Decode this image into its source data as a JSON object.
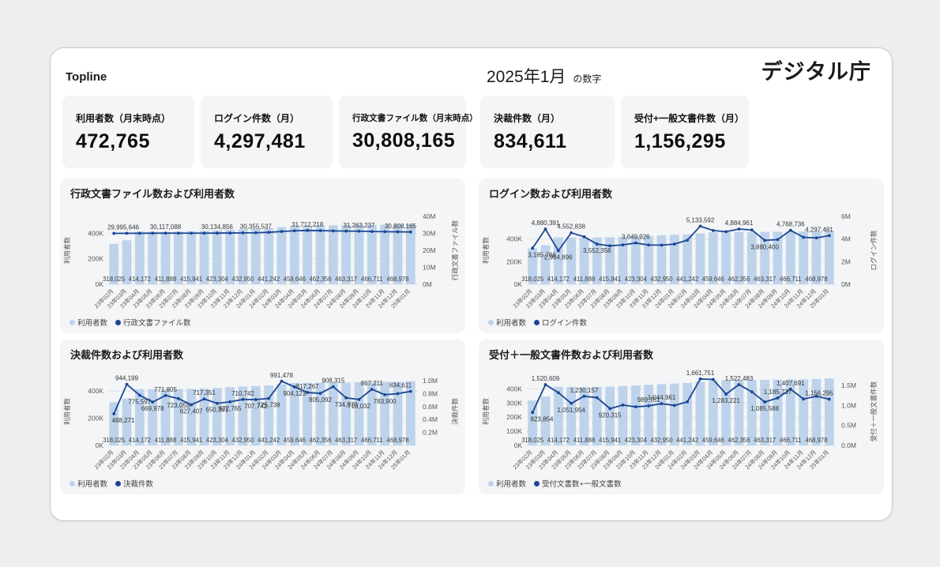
{
  "header": {
    "topline": "Topline",
    "period": "2025年1月",
    "period_suffix": "の数字",
    "brand": "デジタル庁"
  },
  "kpis": [
    {
      "label": "利用者数（月末時点）",
      "value": "472,765"
    },
    {
      "label": "ログイン件数（月）",
      "value": "4,297,481"
    },
    {
      "label": "行政文書ファイル数（月末時点）",
      "value": "30,808,165"
    },
    {
      "label": "決裁件数（月）",
      "value": "834,611"
    },
    {
      "label": "受付+一般文書件数（月）",
      "value": "1,156,295"
    }
  ],
  "colors": {
    "bar": "#BDD3EB",
    "line": "#1C4693"
  },
  "categories": [
    "23年02月",
    "23年03月",
    "23年04月",
    "23年05月",
    "23年06月",
    "23年07月",
    "23年08月",
    "23年09月",
    "23年10月",
    "23年11月",
    "23年12月",
    "24年01月",
    "24年02月",
    "24年03月",
    "24年04月",
    "24年05月",
    "24年06月",
    "24年07月",
    "24年08月",
    "24年09月",
    "24年10月",
    "24年11月",
    "24年12月",
    "25年01月"
  ],
  "users_bars": {
    "name": "利用者数",
    "values": [
      318025,
      345000,
      414172,
      413000,
      411888,
      414000,
      415941,
      419000,
      423304,
      428000,
      432950,
      437000,
      441242,
      450000,
      459646,
      461000,
      462356,
      462800,
      463317,
      465000,
      466711,
      467800,
      468978,
      472765
    ],
    "labels": [
      {
        "i": 0,
        "text": "318,025"
      },
      {
        "i": 2,
        "text": "414,172"
      },
      {
        "i": 4,
        "text": "411,888"
      },
      {
        "i": 6,
        "text": "415,941"
      },
      {
        "i": 8,
        "text": "423,304"
      },
      {
        "i": 10,
        "text": "432,950"
      },
      {
        "i": 12,
        "text": "441,242"
      },
      {
        "i": 14,
        "text": "459,646"
      },
      {
        "i": 16,
        "text": "462,356"
      },
      {
        "i": 18,
        "text": "463,317"
      },
      {
        "i": 20,
        "text": "466,711"
      },
      {
        "i": 22,
        "text": "468,978"
      }
    ]
  },
  "chart_data": [
    {
      "type": "combo_bar_line",
      "title": "行政文書ファイル数および利用者数",
      "line": {
        "name": "行政文書ファイル数",
        "values": [
          29995646,
          30030000,
          30070000,
          30095000,
          30117088,
          30125000,
          30130000,
          30132000,
          30134856,
          30200000,
          30280000,
          30355537,
          30600000,
          31100000,
          31500000,
          31712218,
          31600000,
          31450000,
          31350000,
          31263237,
          31100000,
          30980000,
          30890000,
          30808165
        ],
        "labels": [
          {
            "i": 0,
            "text": "29,995,646",
            "side": "above"
          },
          {
            "i": 4,
            "text": "30,117,088",
            "side": "above"
          },
          {
            "i": 8,
            "text": "30,134,856",
            "side": "above"
          },
          {
            "i": 11,
            "text": "30,355,537",
            "side": "above"
          },
          {
            "i": 15,
            "text": "31,712,218",
            "side": "above"
          },
          {
            "i": 19,
            "text": "31,263,237",
            "side": "above"
          },
          {
            "i": 23,
            "text": "30,808,165",
            "side": "above"
          }
        ]
      },
      "left_axis": {
        "title": "利用者数",
        "max": 533000,
        "ticks": [
          {
            "v": 0,
            "label": "0K"
          },
          {
            "v": 200000,
            "label": "200K"
          },
          {
            "v": 400000,
            "label": "400K"
          }
        ]
      },
      "right_axis": {
        "title": "行政文書ファイル数",
        "max": 40000000,
        "ticks": [
          {
            "v": 0,
            "label": "0M"
          },
          {
            "v": 10000000,
            "label": "10M"
          },
          {
            "v": 20000000,
            "label": "20M"
          },
          {
            "v": 30000000,
            "label": "30M"
          },
          {
            "v": 40000000,
            "label": "40M"
          }
        ]
      },
      "legend": [
        {
          "label": "利用者数",
          "marker": "bar"
        },
        {
          "label": "行政文書ファイル数",
          "marker": "line"
        }
      ]
    },
    {
      "type": "combo_bar_line",
      "title": "ログイン数および利用者数",
      "line": {
        "name": "ログイン件数",
        "values": [
          3185766,
          4880391,
          2964896,
          4552838,
          4200000,
          3552358,
          3400000,
          3480000,
          3649926,
          3470000,
          3460000,
          3550000,
          3900000,
          5133592,
          4750000,
          4650000,
          4884961,
          4800000,
          3880400,
          3950000,
          4768736,
          4150000,
          4100000,
          4297481
        ],
        "labels": [
          {
            "i": 0,
            "text": "3,185,766",
            "side": "below"
          },
          {
            "i": 1,
            "text": "4,880,391",
            "side": "above"
          },
          {
            "i": 2,
            "text": "2,964,896",
            "side": "below"
          },
          {
            "i": 3,
            "text": "4,552,838",
            "side": "above"
          },
          {
            "i": 5,
            "text": "3,552,358",
            "side": "below"
          },
          {
            "i": 8,
            "text": "3,649,926",
            "side": "above"
          },
          {
            "i": 13,
            "text": "5,133,592",
            "side": "above"
          },
          {
            "i": 16,
            "text": "4,884,961",
            "side": "above"
          },
          {
            "i": 18,
            "text": "3,880,400",
            "side": "below"
          },
          {
            "i": 20,
            "text": "4,768,736",
            "side": "above"
          },
          {
            "i": 23,
            "text": "4,297,481",
            "side": "above"
          }
        ]
      },
      "left_axis": {
        "title": "利用者数",
        "max": 600000,
        "ticks": [
          {
            "v": 0,
            "label": "0K"
          },
          {
            "v": 200000,
            "label": "200K"
          },
          {
            "v": 400000,
            "label": "400K"
          }
        ]
      },
      "right_axis": {
        "title": "ログイン件数",
        "max": 6000000,
        "ticks": [
          {
            "v": 0,
            "label": "0M"
          },
          {
            "v": 2000000,
            "label": "2M"
          },
          {
            "v": 4000000,
            "label": "4M"
          },
          {
            "v": 6000000,
            "label": "6M"
          }
        ]
      },
      "legend": [
        {
          "label": "利用者数",
          "marker": "bar"
        },
        {
          "label": "ログイン件数",
          "marker": "line"
        }
      ]
    },
    {
      "type": "combo_bar_line",
      "title": "決裁件数および利用者数",
      "line": {
        "name": "決裁件数",
        "values": [
          488271,
          944199,
          775597,
          669978,
          771805,
          723055,
          627407,
          717351,
          650391,
          672765,
          710742,
          707742,
          725738,
          991478,
          904123,
          817267,
          805092,
          908315,
          734870,
          710032,
          867211,
          783900,
          800000,
          834611
        ],
        "labels": [
          {
            "i": 0,
            "text": "488,271",
            "side": "below"
          },
          {
            "i": 1,
            "text": "944,199",
            "side": "above"
          },
          {
            "i": 2,
            "text": "775,597",
            "side": "below"
          },
          {
            "i": 3,
            "text": "669,978",
            "side": "below"
          },
          {
            "i": 4,
            "text": "771,805",
            "side": "above"
          },
          {
            "i": 5,
            "text": "723,055",
            "side": "below"
          },
          {
            "i": 6,
            "text": "627,407",
            "side": "below"
          },
          {
            "i": 7,
            "text": "717,351",
            "side": "above"
          },
          {
            "i": 8,
            "text": "650,391",
            "side": "below"
          },
          {
            "i": 9,
            "text": "672,765",
            "side": "below"
          },
          {
            "i": 10,
            "text": "710,742",
            "side": "above"
          },
          {
            "i": 11,
            "text": "707,742",
            "side": "below"
          },
          {
            "i": 12,
            "text": "725,738",
            "side": "below"
          },
          {
            "i": 13,
            "text": "991,478",
            "side": "above"
          },
          {
            "i": 14,
            "text": "904,123",
            "side": "below"
          },
          {
            "i": 15,
            "text": "817,267",
            "side": "above"
          },
          {
            "i": 16,
            "text": "805,092",
            "side": "below"
          },
          {
            "i": 17,
            "text": "908,315",
            "side": "above"
          },
          {
            "i": 18,
            "text": "734,870",
            "side": "below"
          },
          {
            "i": 19,
            "text": "710,032",
            "side": "below"
          },
          {
            "i": 20,
            "text": "867,211",
            "side": "above"
          },
          {
            "i": 21,
            "text": "783,900",
            "side": "below"
          },
          {
            "i": 23,
            "text": "834,611",
            "side": "above"
          }
        ]
      },
      "left_axis": {
        "title": "利用者数",
        "max": 500000,
        "ticks": [
          {
            "v": 0,
            "label": "0K"
          },
          {
            "v": 200000,
            "label": "200K"
          },
          {
            "v": 400000,
            "label": "400K"
          }
        ]
      },
      "right_axis": {
        "title": "決裁件数",
        "max": 1050000,
        "ticks": [
          {
            "v": 200000,
            "label": "0.2M"
          },
          {
            "v": 400000,
            "label": "0.4M"
          },
          {
            "v": 600000,
            "label": "0.6M"
          },
          {
            "v": 800000,
            "label": "0.8M"
          },
          {
            "v": 1000000,
            "label": "1.0M"
          }
        ]
      },
      "legend": [
        {
          "label": "利用者数",
          "marker": "bar"
        },
        {
          "label": "決裁件数",
          "marker": "line"
        }
      ]
    },
    {
      "type": "combo_bar_line",
      "title": "受付＋一般文書件数および利用者数",
      "line": {
        "name": "受付文書数+一般文書数",
        "values": [
          823854,
          1520609,
          1320000,
          1051954,
          1230157,
          1195000,
          920315,
          1010000,
          965000,
          989761,
          1044961,
          1000000,
          1090000,
          1661751,
          1650000,
          1283221,
          1522483,
          1340000,
          1085588,
          1185737,
          1407691,
          1160000,
          1230000,
          1156295
        ],
        "labels": [
          {
            "i": 0,
            "text": "823,854",
            "side": "below"
          },
          {
            "i": 1,
            "text": "1,520,609",
            "side": "above"
          },
          {
            "i": 3,
            "text": "1,051,954",
            "side": "below"
          },
          {
            "i": 4,
            "text": "1,230,157",
            "side": "above"
          },
          {
            "i": 6,
            "text": "920,315",
            "side": "below"
          },
          {
            "i": 9,
            "text": "989,761",
            "side": "above"
          },
          {
            "i": 10,
            "text": "1,044,961",
            "side": "above"
          },
          {
            "i": 13,
            "text": "1,661,751",
            "side": "above"
          },
          {
            "i": 15,
            "text": "1,283,221",
            "side": "below"
          },
          {
            "i": 16,
            "text": "1,522,483",
            "side": "above"
          },
          {
            "i": 18,
            "text": "1,085,588",
            "side": "below"
          },
          {
            "i": 19,
            "text": "1,185,737",
            "side": "above"
          },
          {
            "i": 20,
            "text": "1,407,691",
            "side": "above"
          },
          {
            "i": 23,
            "text": "1,156,295",
            "side": "above"
          }
        ]
      },
      "left_axis": {
        "title": "利用者数",
        "max": 480000,
        "ticks": [
          {
            "v": 0,
            "label": "0K"
          },
          {
            "v": 100000,
            "label": "100K"
          },
          {
            "v": 200000,
            "label": "200K"
          },
          {
            "v": 300000,
            "label": "300K"
          },
          {
            "v": 400000,
            "label": "400K"
          }
        ]
      },
      "right_axis": {
        "title": "受付＋一般文書件数",
        "max": 1700000,
        "ticks": [
          {
            "v": 0,
            "label": "0.0M"
          },
          {
            "v": 500000,
            "label": "0.5M"
          },
          {
            "v": 1000000,
            "label": "1.0M"
          },
          {
            "v": 1500000,
            "label": "1.5M"
          }
        ]
      },
      "legend": [
        {
          "label": "利用者数",
          "marker": "bar"
        },
        {
          "label": "受付文書数+一般文書数",
          "marker": "line"
        }
      ]
    }
  ]
}
